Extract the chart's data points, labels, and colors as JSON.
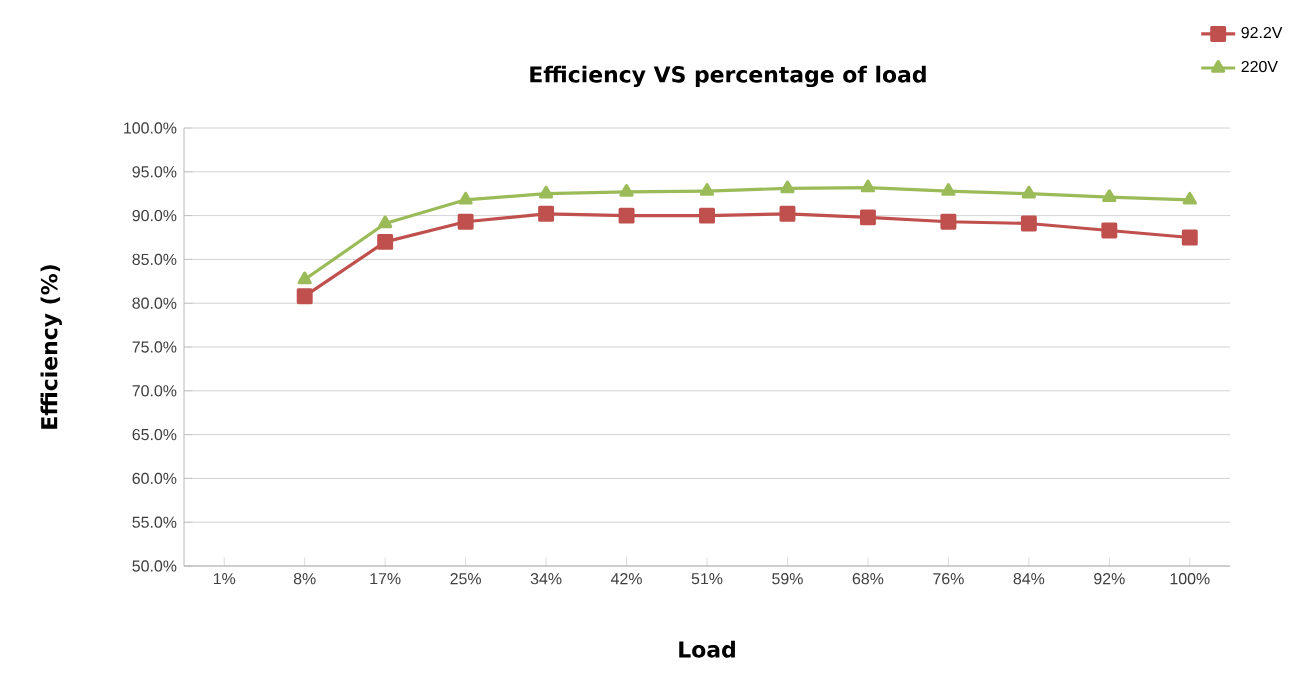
{
  "chart_data": {
    "type": "line",
    "title": "Efficiency VS percentage of load",
    "xlabel": "Load",
    "ylabel": "Efficiency (%)",
    "categories": [
      "1%",
      "8%",
      "17%",
      "25%",
      "34%",
      "42%",
      "51%",
      "59%",
      "68%",
      "76%",
      "84%",
      "92%",
      "100%"
    ],
    "series": [
      {
        "name": "92.2V",
        "color": "#c0504d",
        "marker": "square",
        "values": [
          null,
          80.8,
          87.0,
          89.3,
          90.2,
          90.0,
          90.0,
          90.2,
          89.8,
          89.3,
          89.1,
          88.3,
          87.5
        ]
      },
      {
        "name": "220V",
        "color": "#9bbb59",
        "marker": "triangle",
        "values": [
          null,
          82.7,
          89.1,
          91.8,
          92.5,
          92.7,
          92.8,
          93.1,
          93.2,
          92.8,
          92.5,
          92.1,
          91.8
        ]
      }
    ],
    "ylim": [
      50,
      100
    ],
    "yticks": [
      {
        "value": 50,
        "label": "50.0%"
      },
      {
        "value": 55,
        "label": "55.0%"
      },
      {
        "value": 60,
        "label": "60.0%"
      },
      {
        "value": 65,
        "label": "65.0%"
      },
      {
        "value": 70,
        "label": "70.0%"
      },
      {
        "value": 75,
        "label": "75.0%"
      },
      {
        "value": 80,
        "label": "80.0%"
      },
      {
        "value": 85,
        "label": "85.0%"
      },
      {
        "value": 90,
        "label": "90.0%"
      },
      {
        "value": 95,
        "label": "95.0%"
      },
      {
        "value": 100,
        "label": "100.0%"
      }
    ],
    "grid": "y",
    "legend": "top right",
    "line_style": "solid"
  }
}
